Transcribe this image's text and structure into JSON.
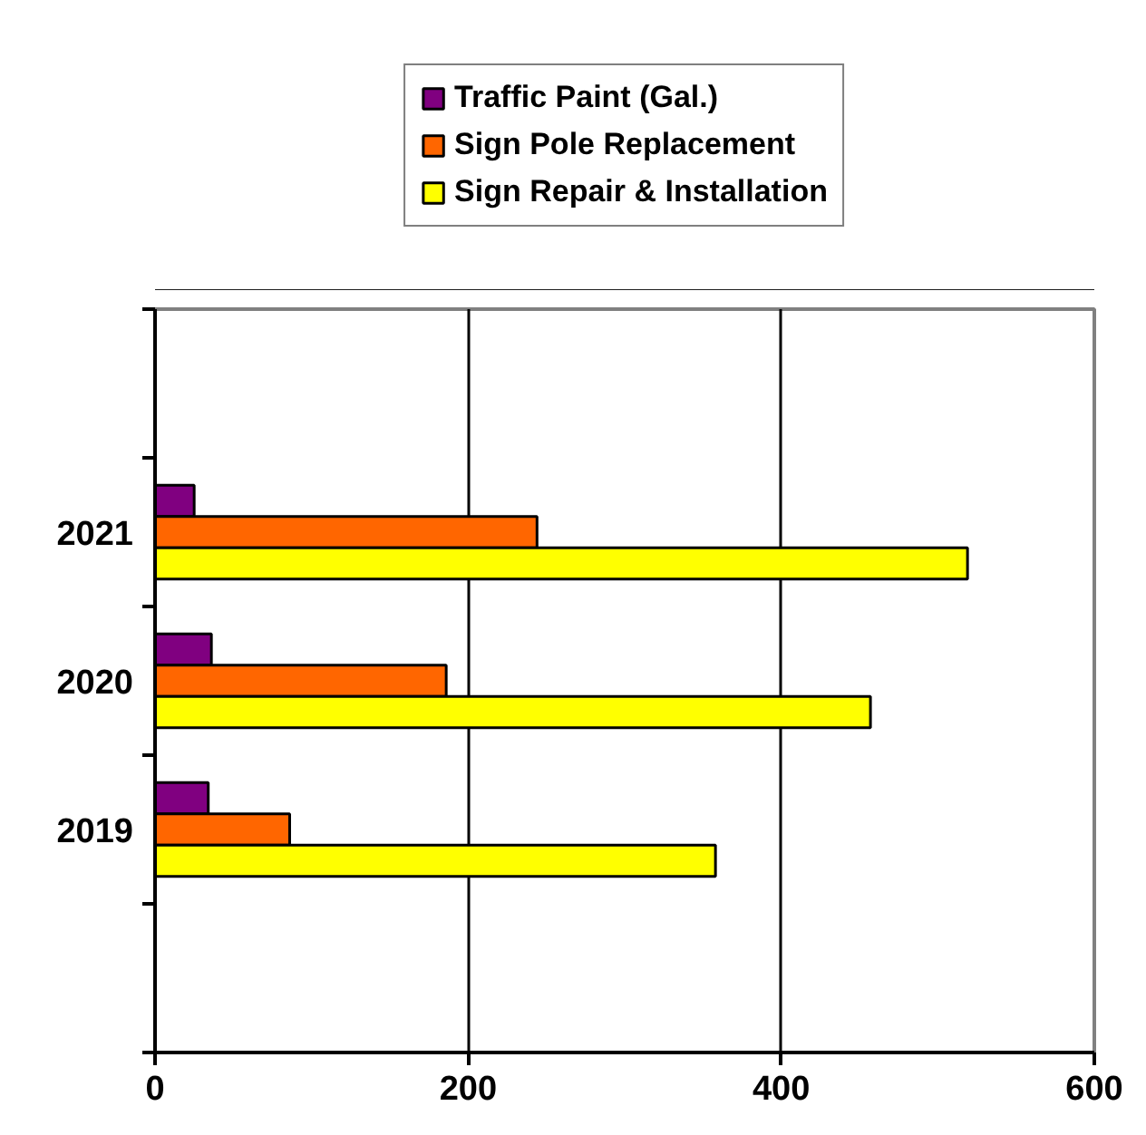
{
  "chart_data": {
    "type": "bar",
    "orientation": "horizontal",
    "categories": [
      "2021",
      "2020",
      "2019"
    ],
    "series": [
      {
        "name": "Traffic Paint (Gal.)",
        "color": "#800080",
        "values": [
          25,
          36,
          34
        ]
      },
      {
        "name": "Sign Pole Replacement",
        "color": "#ff6600",
        "values": [
          244,
          186,
          86
        ]
      },
      {
        "name": "Sign Repair & Installation",
        "color": "#ffff00",
        "values": [
          519,
          457,
          358
        ]
      }
    ],
    "xlim": [
      0,
      600
    ],
    "xticks": [
      0,
      200,
      400,
      600
    ],
    "grid": "x",
    "legend": "top"
  }
}
